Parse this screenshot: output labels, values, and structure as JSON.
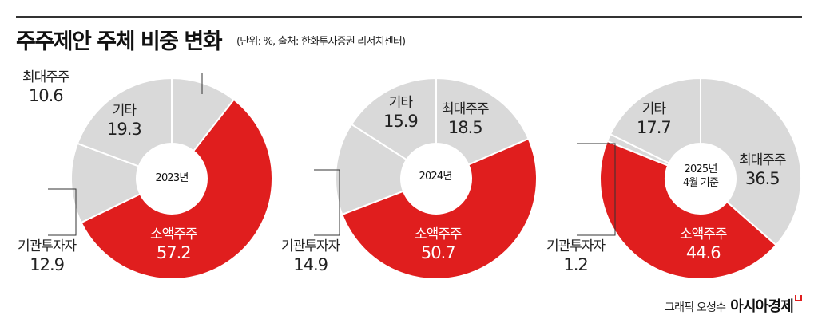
{
  "title": "주주제안 주체 비중 변화",
  "subtitle": "(단위: %, 출처: 한화투자증권 리서치센터)",
  "credit": {
    "author": "그래픽 오성수",
    "brand": "아시아경제"
  },
  "colors": {
    "red": "#e01e1e",
    "gray": "#d9d9d9"
  },
  "chart_data": [
    {
      "type": "pie",
      "title": "2023년",
      "center_label": [
        "2023년"
      ],
      "categories": [
        "최대주주",
        "소액주주",
        "기관투자자",
        "기타"
      ],
      "values": [
        10.6,
        57.2,
        12.9,
        19.3
      ]
    },
    {
      "type": "pie",
      "title": "2024년",
      "center_label": [
        "2024년"
      ],
      "categories": [
        "최대주주",
        "소액주주",
        "기관투자자",
        "기타"
      ],
      "values": [
        18.5,
        50.7,
        14.9,
        15.9
      ]
    },
    {
      "type": "pie",
      "title": "2025년 4월 기준",
      "center_label": [
        "2025년",
        "4월 기준"
      ],
      "categories": [
        "최대주주",
        "소액주주",
        "기관투자자",
        "기타"
      ],
      "values": [
        36.5,
        44.6,
        1.2,
        17.7
      ]
    }
  ]
}
